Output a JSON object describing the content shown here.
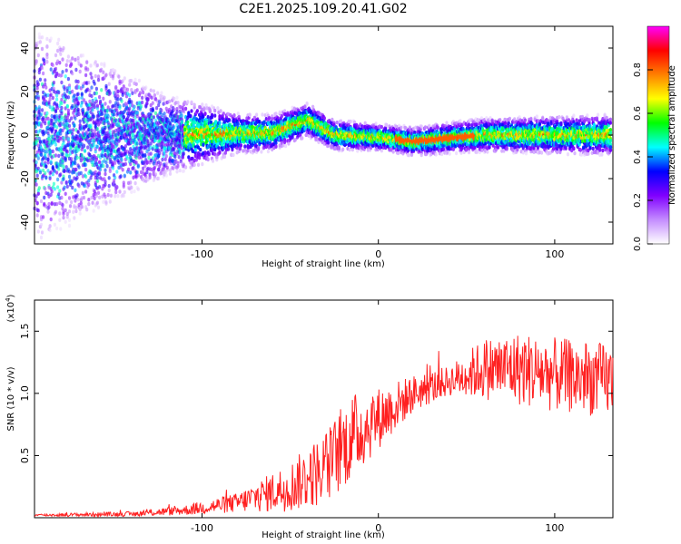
{
  "title": "C2E1.2025.109.20.41.G02",
  "chart_data": [
    {
      "type": "heatmap",
      "xlabel": "Height of straight line (km)",
      "ylabel": "Frequency (Hz)",
      "xlim": [
        -195,
        133
      ],
      "ylim": [
        -50,
        50
      ],
      "xticks": [
        -100,
        0,
        100
      ],
      "yticks": [
        -40,
        -20,
        0,
        20,
        40
      ],
      "colorbar": {
        "label": "Normalized spectral amplitude",
        "range": [
          0,
          1
        ],
        "ticks": [
          "0.0",
          "0.2",
          "0.4",
          "0.6",
          "0.8"
        ],
        "colors": [
          "#ffffff",
          "#c48cff",
          "#8000ff",
          "#0000ff",
          "#00ffff",
          "#00ff00",
          "#ffff00",
          "#ff8000",
          "#ff0000",
          "#ff00ff"
        ]
      },
      "ridge_center_hz": [
        {
          "x": -180,
          "y": 0
        },
        {
          "x": -120,
          "y": 0
        },
        {
          "x": -60,
          "y": 1
        },
        {
          "x": -40,
          "y": 7
        },
        {
          "x": -25,
          "y": 0
        },
        {
          "x": 0,
          "y": -1
        },
        {
          "x": 20,
          "y": -3
        },
        {
          "x": 45,
          "y": -1
        },
        {
          "x": 60,
          "y": 0
        },
        {
          "x": 100,
          "y": 0
        },
        {
          "x": 130,
          "y": 0
        }
      ],
      "ridge_halfwidth_hz": [
        {
          "x": -190,
          "y": 30
        },
        {
          "x": -120,
          "y": 12
        },
        {
          "x": -80,
          "y": 6
        },
        {
          "x": 0,
          "y": 4
        },
        {
          "x": 60,
          "y": 5
        },
        {
          "x": 130,
          "y": 6
        }
      ]
    },
    {
      "type": "line",
      "xlabel": "Height of straight line (km)",
      "ylabel": "SNR (10 * v/v)",
      "ylabel_scale": "(x10",
      "ylabel_scale_exp": "4",
      "ylabel_scale_close": ")",
      "xlim": [
        -195,
        133
      ],
      "ylim": [
        0,
        1.75
      ],
      "xticks": [
        -100,
        0,
        100
      ],
      "yticks": [
        "0.5",
        "1.0",
        "1.5"
      ],
      "series": [
        {
          "color": "#ff2020",
          "envelope": [
            {
              "x": -195,
              "mean": 0.02,
              "amp": 0.01
            },
            {
              "x": -140,
              "mean": 0.03,
              "amp": 0.02
            },
            {
              "x": -110,
              "mean": 0.06,
              "amp": 0.04
            },
            {
              "x": -80,
              "mean": 0.12,
              "amp": 0.08
            },
            {
              "x": -50,
              "mean": 0.25,
              "amp": 0.2
            },
            {
              "x": -30,
              "mean": 0.4,
              "amp": 0.3
            },
            {
              "x": -15,
              "mean": 0.65,
              "amp": 0.35
            },
            {
              "x": 0,
              "mean": 0.8,
              "amp": 0.25
            },
            {
              "x": 20,
              "mean": 1.0,
              "amp": 0.15
            },
            {
              "x": 40,
              "mean": 1.1,
              "amp": 0.12
            },
            {
              "x": 60,
              "mean": 1.2,
              "amp": 0.25
            },
            {
              "x": 80,
              "mean": 1.2,
              "amp": 0.3
            },
            {
              "x": 100,
              "mean": 1.15,
              "amp": 0.3
            },
            {
              "x": 133,
              "mean": 1.1,
              "amp": 0.3
            }
          ]
        }
      ]
    }
  ]
}
